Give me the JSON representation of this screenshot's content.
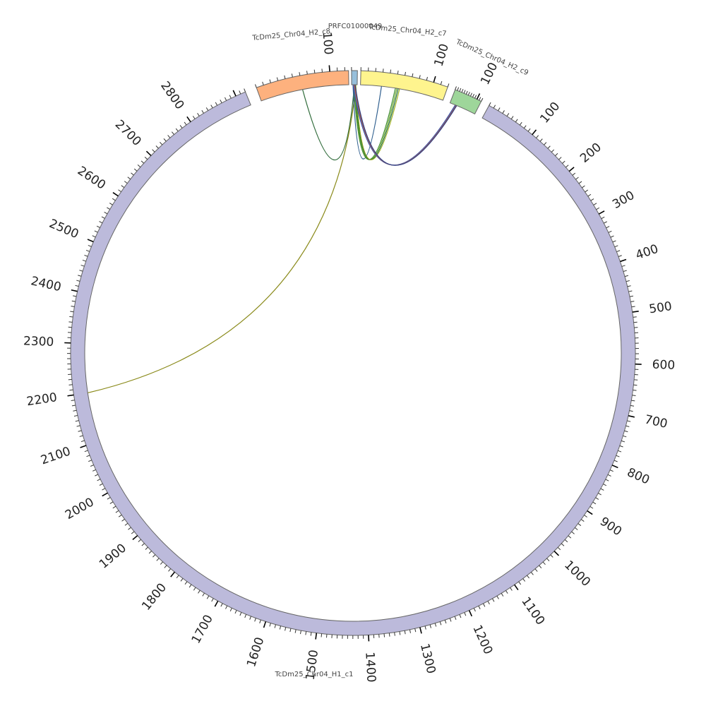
{
  "chart_data": {
    "type": "circos",
    "segments": [
      {
        "name": "TcDm25_Chr04_H1_c1",
        "color": "#bcbadb",
        "length": 2920,
        "ticks": [
          "100",
          "200",
          "300",
          "400",
          "500",
          "600",
          "700",
          "800",
          "900",
          "1000",
          "1100",
          "1200",
          "1300",
          "1400",
          "1500",
          "1600",
          "1700",
          "1800",
          "1900",
          "2000",
          "2100",
          "2200",
          "2300",
          "2400",
          "2500",
          "2600",
          "2700",
          "2800"
        ]
      },
      {
        "name": "TcDm25_Chr04_H2_c8",
        "color": "#fdb17e",
        "length": 125,
        "ticks": [
          "100"
        ]
      },
      {
        "name": "PRFC01000049",
        "color": "#97bfdb",
        "length": 8,
        "ticks": []
      },
      {
        "name": "TcDm25_Chr04_H2_c7",
        "color": "#fef48e",
        "length": 120,
        "ticks": [
          "100"
        ]
      },
      {
        "name": "TcDm25_Chr04_H2_c9",
        "color": "#9ed69a",
        "length": 120,
        "ticks": [
          "100"
        ]
      }
    ],
    "links": [
      {
        "from_segment": "TcDm25_Chr04_H2_c8",
        "from_pos": 60,
        "to_segment": "PRFC01000049",
        "to_pos": 4,
        "color": "#2f6b3a"
      },
      {
        "from_segment": "TcDm25_Chr04_H1_c1",
        "from_pos": 2200,
        "to_segment": "PRFC01000049",
        "to_pos": 6,
        "color": "#8a8a1a"
      },
      {
        "from_segment": "PRFC01000049",
        "from_pos": 2,
        "to_segment": "TcDm25_Chr04_H2_c7",
        "to_pos": 30,
        "color": "#2e5e8e"
      },
      {
        "from_segment": "PRFC01000049",
        "from_pos": 3,
        "to_segment": "TcDm25_Chr04_H2_c7",
        "to_pos": 50,
        "color": "#3c8a2e"
      },
      {
        "from_segment": "PRFC01000049",
        "from_pos": 4,
        "to_segment": "TcDm25_Chr04_H2_c7",
        "to_pos": 52,
        "color": "#6aa628"
      },
      {
        "from_segment": "PRFC01000049",
        "from_pos": 5,
        "to_segment": "TcDm25_Chr04_H2_c7",
        "to_pos": 54,
        "color": "#1e6b3f"
      },
      {
        "from_segment": "PRFC01000049",
        "from_pos": 6,
        "to_segment": "TcDm25_Chr04_H2_c7",
        "to_pos": 56,
        "color": "#a0b020"
      },
      {
        "from_segment": "PRFC01000049",
        "from_pos": 2,
        "to_segment": "TcDm25_Chr04_H2_c9",
        "to_pos": 25,
        "color": "#3a4fa0"
      },
      {
        "from_segment": "PRFC01000049",
        "from_pos": 3,
        "to_segment": "TcDm25_Chr04_H2_c9",
        "to_pos": 28,
        "color": "#5a6bb8"
      },
      {
        "from_segment": "PRFC01000049",
        "from_pos": 4,
        "to_segment": "TcDm25_Chr04_H2_c9",
        "to_pos": 30,
        "color": "#c05a2a"
      },
      {
        "from_segment": "PRFC01000049",
        "from_pos": 5,
        "to_segment": "TcDm25_Chr04_H2_c9",
        "to_pos": 32,
        "color": "#2c3f88"
      }
    ]
  }
}
